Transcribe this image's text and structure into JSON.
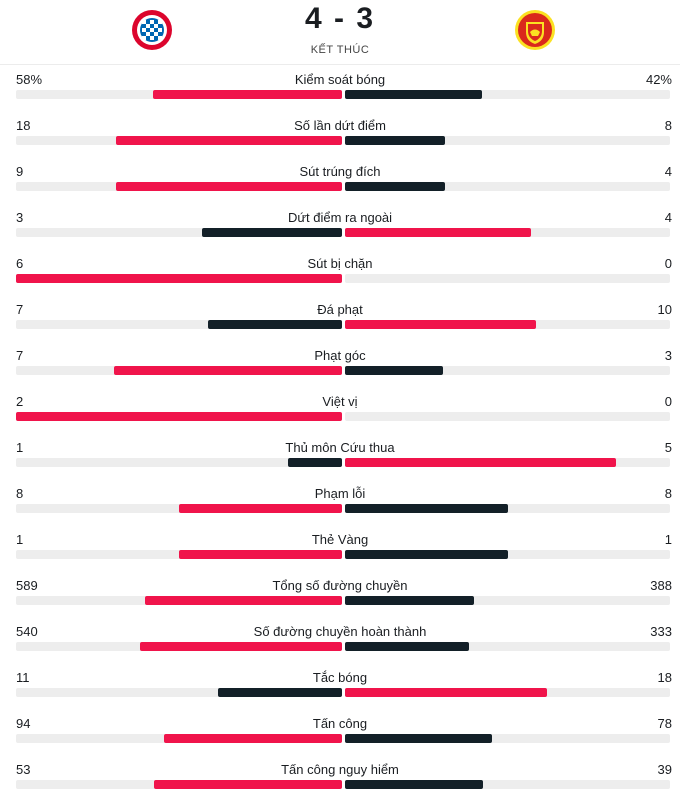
{
  "match": {
    "score": "4 - 3",
    "status": "KẾT THÚC",
    "home_logo": "bayern-munich-crest",
    "away_logo": "manchester-united-crest"
  },
  "colors": {
    "winner": "#f0144b",
    "loser": "#132028",
    "track": "#ededed"
  },
  "stats": [
    {
      "label": "Kiểm soát bóng",
      "home": "58%",
      "away": "42%",
      "home_num": 58,
      "away_num": 42
    },
    {
      "label": "Số lần dứt điểm",
      "home": "18",
      "away": "8",
      "home_num": 18,
      "away_num": 8
    },
    {
      "label": "Sút trúng đích",
      "home": "9",
      "away": "4",
      "home_num": 9,
      "away_num": 4
    },
    {
      "label": "Dứt điểm ra ngoài",
      "home": "3",
      "away": "4",
      "home_num": 3,
      "away_num": 4
    },
    {
      "label": "Sút bị chặn",
      "home": "6",
      "away": "0",
      "home_num": 6,
      "away_num": 0
    },
    {
      "label": "Đá phạt",
      "home": "7",
      "away": "10",
      "home_num": 7,
      "away_num": 10
    },
    {
      "label": "Phạt góc",
      "home": "7",
      "away": "3",
      "home_num": 7,
      "away_num": 3
    },
    {
      "label": "Việt vị",
      "home": "2",
      "away": "0",
      "home_num": 2,
      "away_num": 0
    },
    {
      "label": "Thủ môn Cứu thua",
      "home": "1",
      "away": "5",
      "home_num": 1,
      "away_num": 5
    },
    {
      "label": "Phạm lỗi",
      "home": "8",
      "away": "8",
      "home_num": 8,
      "away_num": 8
    },
    {
      "label": "Thẻ Vàng",
      "home": "1",
      "away": "1",
      "home_num": 1,
      "away_num": 1
    },
    {
      "label": "Tổng số đường chuyền",
      "home": "589",
      "away": "388",
      "home_num": 589,
      "away_num": 388
    },
    {
      "label": "Số đường chuyền hoàn thành",
      "home": "540",
      "away": "333",
      "home_num": 540,
      "away_num": 333
    },
    {
      "label": "Tắc bóng",
      "home": "11",
      "away": "18",
      "home_num": 11,
      "away_num": 18
    },
    {
      "label": "Tấn công",
      "home": "94",
      "away": "78",
      "home_num": 94,
      "away_num": 78
    },
    {
      "label": "Tấn công nguy hiểm",
      "home": "53",
      "away": "39",
      "home_num": 53,
      "away_num": 39
    }
  ]
}
